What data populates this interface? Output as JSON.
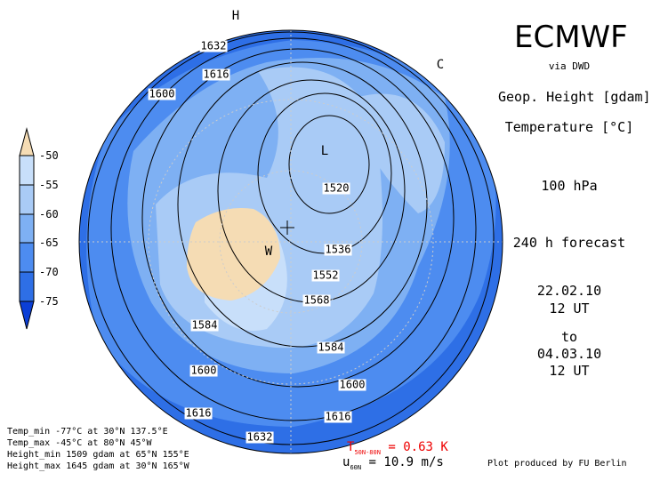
{
  "header": {
    "title": "ECMWF",
    "source": "via DWD"
  },
  "info": {
    "field1": "Geop. Height [gdam]",
    "field2": "Temperature [°C]",
    "level": "100 hPa",
    "forecast": "240 h forecast",
    "start_date": "22.02.10",
    "start_time": "12 UT",
    "to": "to",
    "end_date": "04.03.10",
    "end_time": "12 UT"
  },
  "colorbar": {
    "labels": [
      "-50",
      "-55",
      "-60",
      "-65",
      "-70",
      "-75"
    ]
  },
  "map": {
    "markers": [
      "H",
      "C",
      "L",
      "W"
    ],
    "contour_labels": [
      "1632",
      "1616",
      "1600",
      "1520",
      "1536",
      "1552",
      "1568",
      "1584",
      "1584",
      "1600",
      "1600",
      "1616",
      "1616",
      "1632"
    ]
  },
  "stats": [
    "Temp_min -77°C at 30°N 137.5°E",
    "Temp_max -45°C at 80°N 45°W",
    "Height_min 1509 gdam at 65°N 155°E",
    "Height_max 1645 gdam at 30°N 165°W"
  ],
  "indices": {
    "t_symbol": "T",
    "t_sub": "50N-80N",
    "t_value": "= 0.63 K",
    "u_symbol": "u",
    "u_sub": "60N",
    "u_value": "= 10.9 m/s"
  },
  "credit": "Plot produced by FU Berlin"
}
